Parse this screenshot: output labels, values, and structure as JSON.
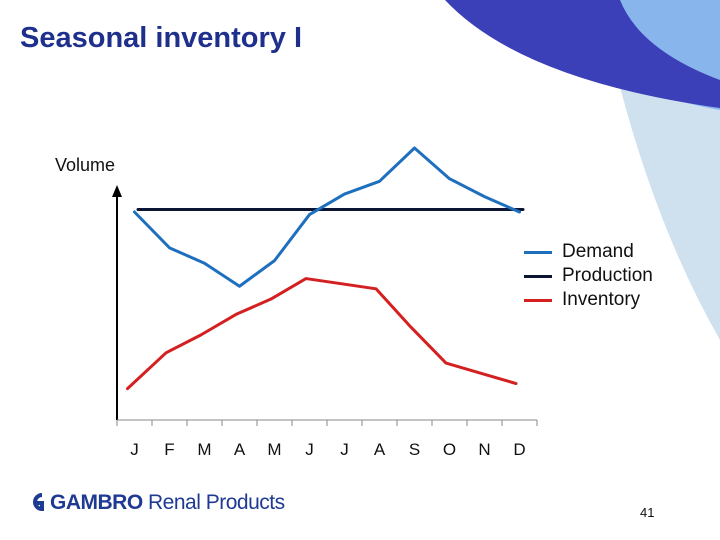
{
  "slide": {
    "title": "Seasonal inventory I",
    "page_number": "41"
  },
  "logo": {
    "brand": "GAMBRO",
    "suffix": "Renal Products"
  },
  "colors": {
    "title": "#1f2f8c",
    "demand": "#1f6fbf",
    "production": "#0d1535",
    "inventory": "#d42020",
    "deco_dark": "#3b3fb8",
    "deco_mid": "#88b5ec",
    "deco_light": "#cfe1ef"
  },
  "chart_data": {
    "type": "line",
    "ylabel": "Volume",
    "xlabel": "",
    "categories": [
      "J",
      "F",
      "M",
      "A",
      "M",
      "J",
      "J",
      "A",
      "S",
      "O",
      "N",
      "D"
    ],
    "ylim": [
      0,
      100
    ],
    "grid": false,
    "legend_position": "right",
    "series": [
      {
        "name": "Demand",
        "color": "#1f6fbf",
        "x": [
          0.5,
          1.5,
          2.5,
          3.5,
          4.5,
          5.5,
          6.5,
          7.5,
          8.5,
          9.5,
          10.5,
          11.5
        ],
        "values": [
          75,
          61,
          55,
          46,
          56,
          74,
          82,
          87,
          100,
          88,
          81,
          75
        ]
      },
      {
        "name": "Production",
        "color": "#0d1535",
        "x": [
          0.6,
          11.6
        ],
        "values": [
          76,
          76
        ]
      },
      {
        "name": "Inventory",
        "color": "#d42020",
        "x": [
          0.3,
          1.4,
          2.4,
          3.4,
          4.4,
          5.4,
          6.4,
          7.4,
          8.4,
          9.4,
          10.4,
          11.4
        ],
        "values": [
          6,
          20,
          27,
          35,
          41,
          49,
          47,
          45,
          30,
          16,
          12,
          8
        ]
      }
    ]
  }
}
